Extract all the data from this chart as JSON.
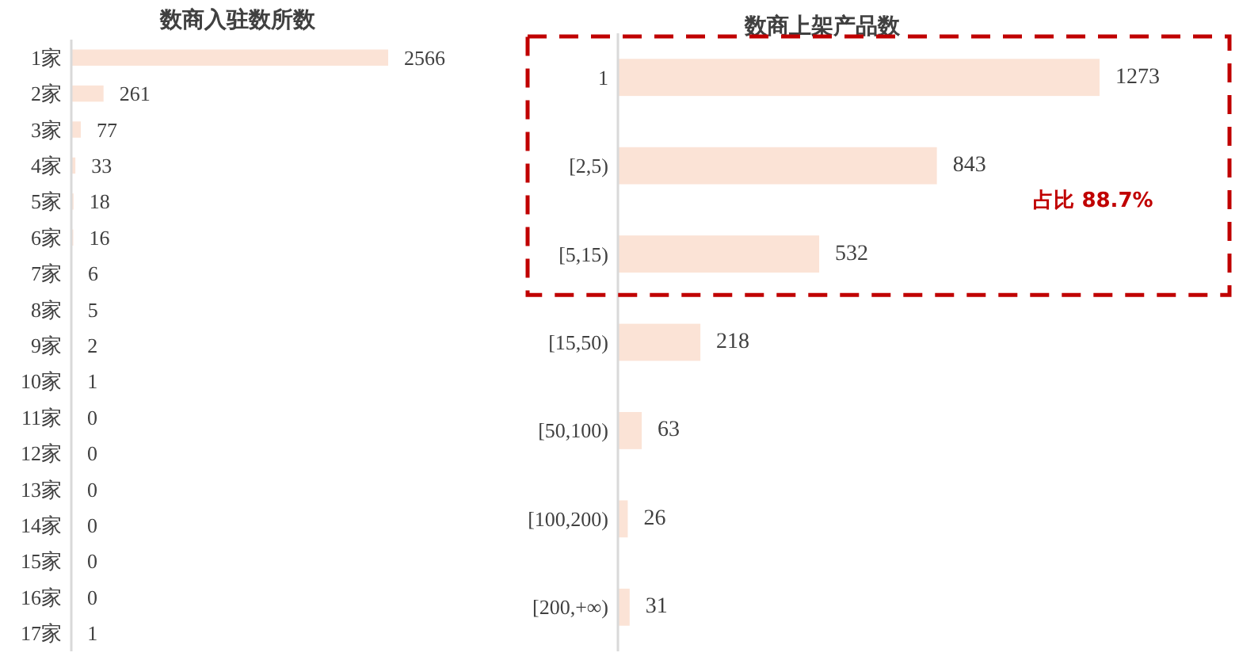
{
  "chart_data": [
    {
      "type": "bar",
      "orientation": "horizontal",
      "title": "数商入驻数所数",
      "categories": [
        "1家",
        "2家",
        "3家",
        "4家",
        "5家",
        "6家",
        "7家",
        "8家",
        "9家",
        "10家",
        "11家",
        "12家",
        "13家",
        "14家",
        "15家",
        "16家",
        "17家"
      ],
      "values": [
        2566,
        261,
        77,
        33,
        18,
        16,
        6,
        5,
        2,
        1,
        0,
        0,
        0,
        0,
        0,
        0,
        1
      ],
      "color": "#fbe3d6",
      "data_labels": true,
      "tick_labels": "y"
    },
    {
      "type": "bar",
      "orientation": "horizontal",
      "title": "数商上架产品数",
      "categories": [
        "1",
        "[2,5)",
        "[5,15)",
        "[15,50)",
        "[50,100)",
        "[100,200)",
        "[200,+∞)"
      ],
      "values": [
        1273,
        843,
        532,
        218,
        63,
        26,
        31
      ],
      "color": "#fbe3d6",
      "data_labels": true,
      "tick_labels": "y",
      "annotations": [
        "占比 88.7%"
      ]
    }
  ]
}
